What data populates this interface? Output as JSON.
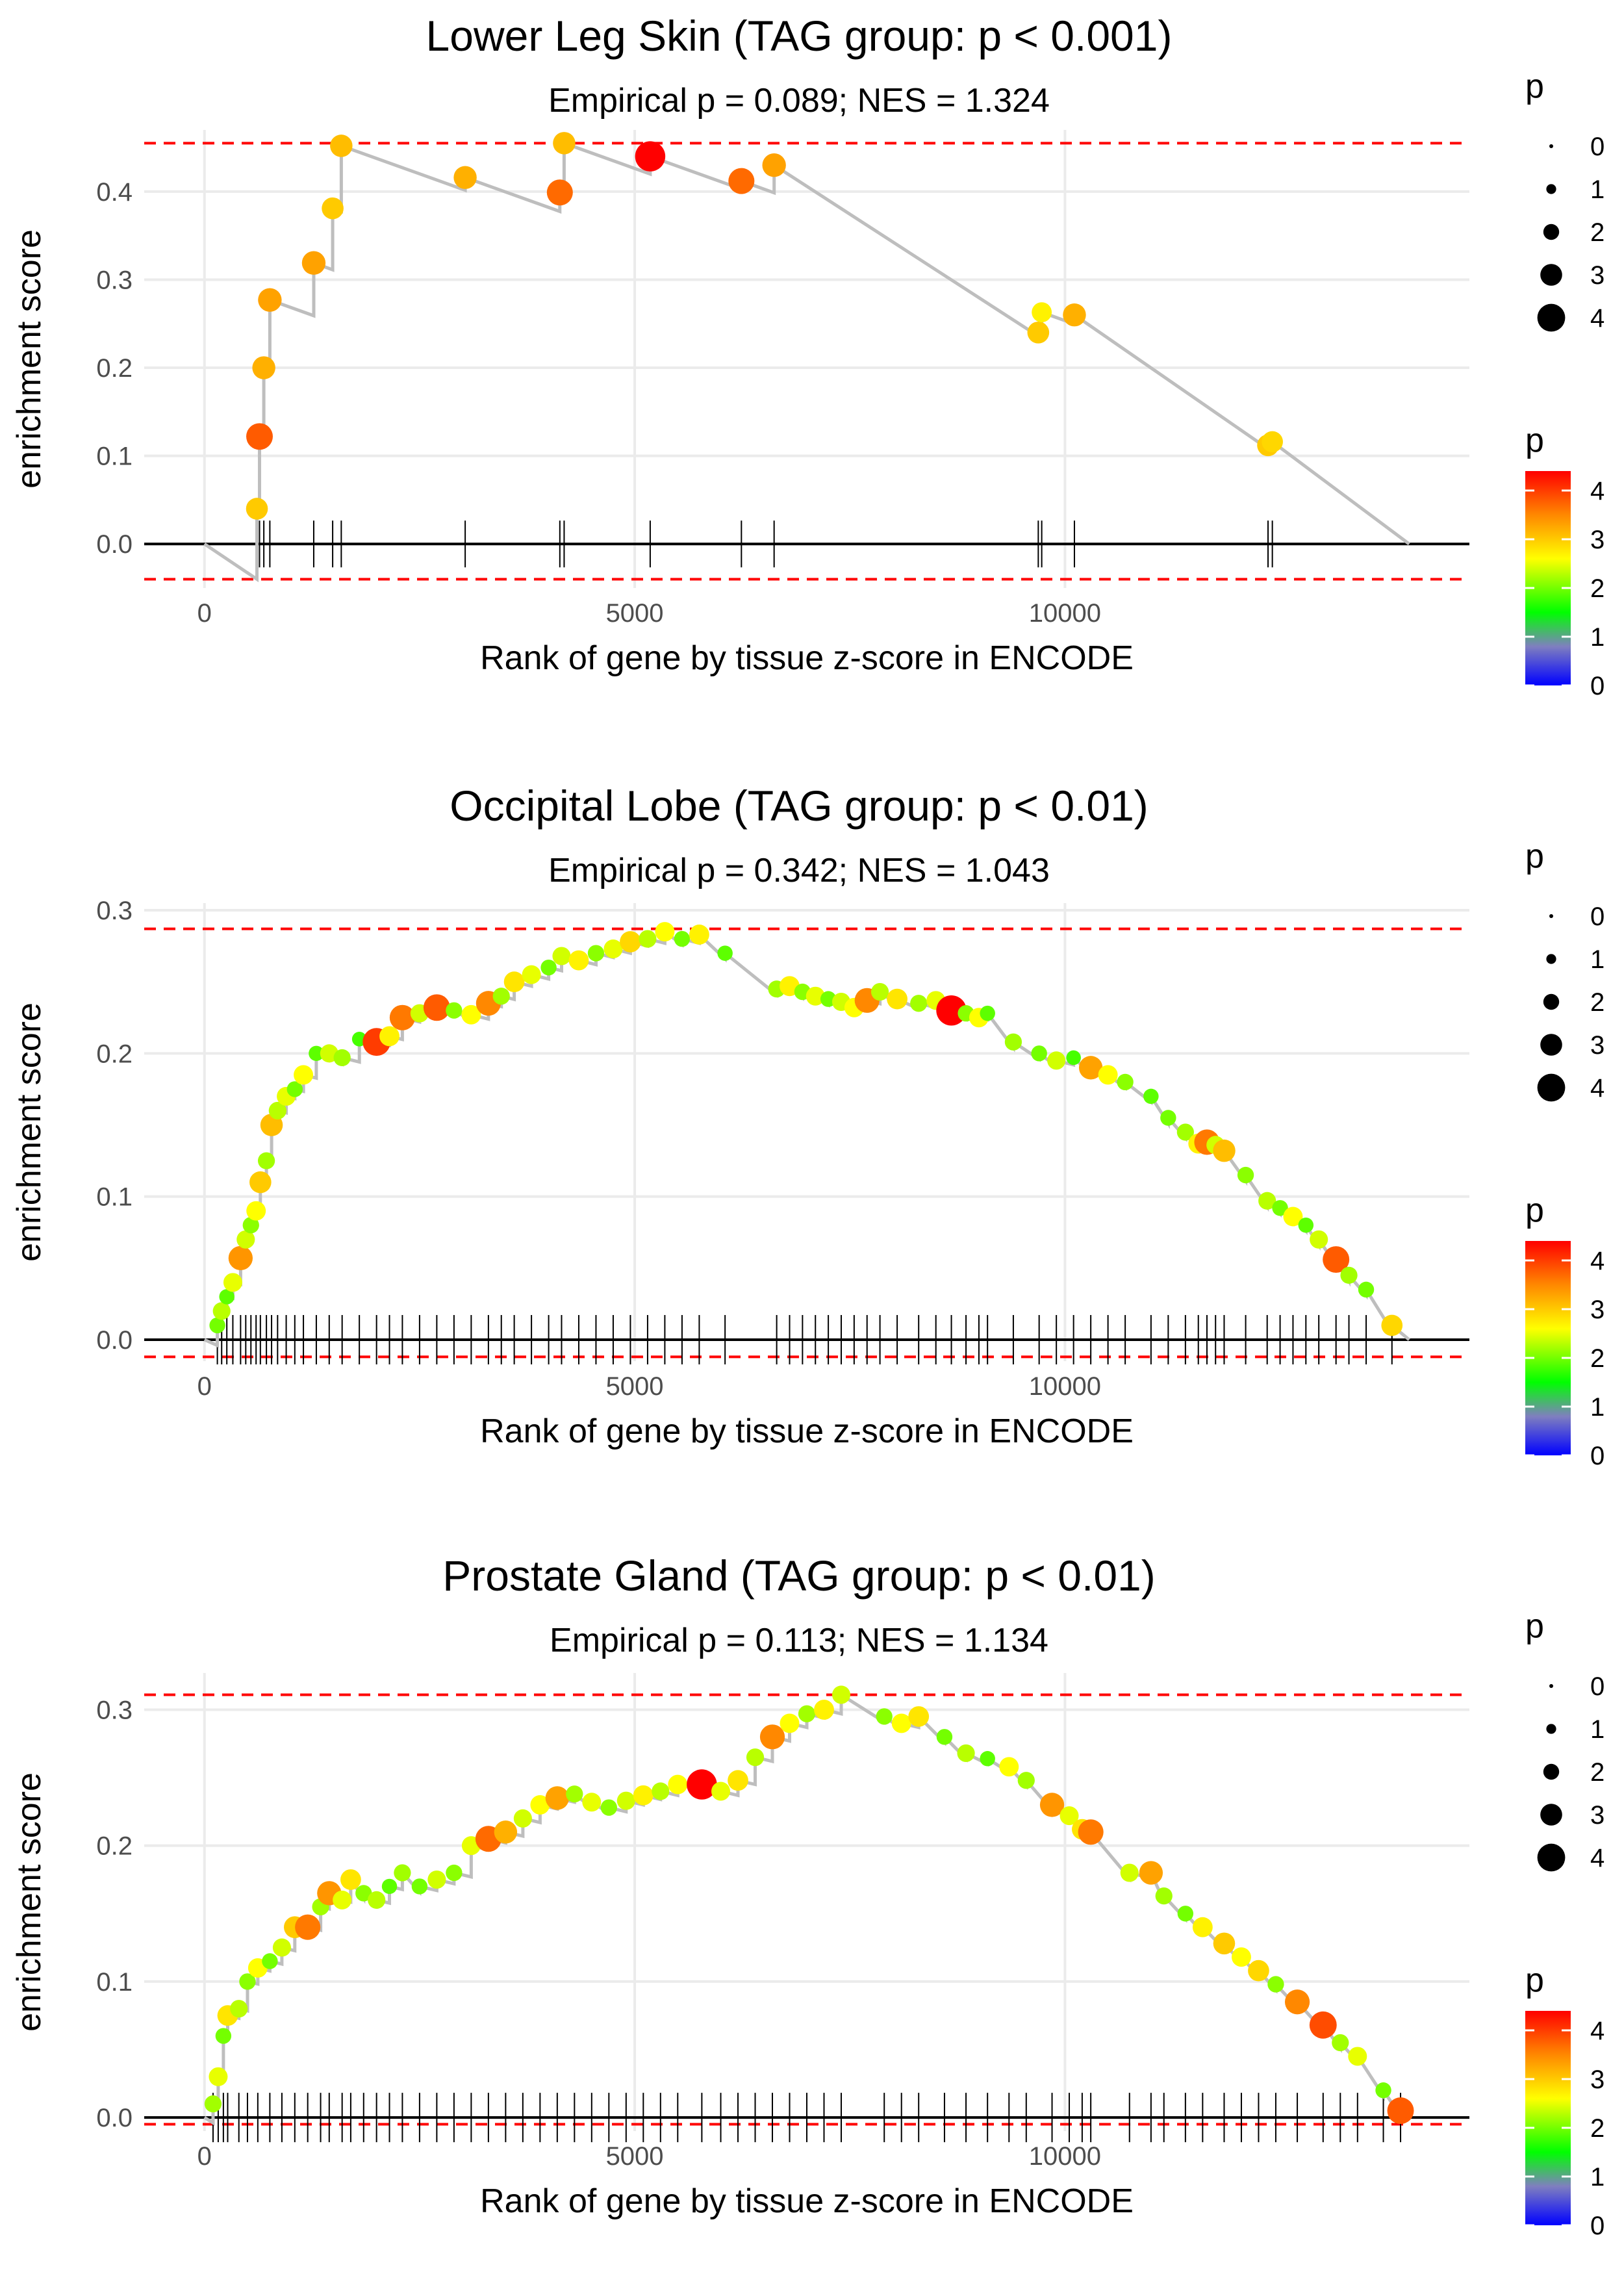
{
  "chart_data": [
    {
      "type": "line",
      "title": "Lower Leg Skin (TAG group: p < 0.001)",
      "subtitle": "Empirical p = 0.089; NES = 1.324",
      "xlabel": "Rank of gene by tissue z-score in ENCODE",
      "ylabel": "enrichment score",
      "xlim": [
        -700,
        14700
      ],
      "ylim": [
        -0.05,
        0.47
      ],
      "x_ticks": [
        0,
        5000,
        10000
      ],
      "x_tick_labels": [
        "0",
        "5000",
        "10000"
      ],
      "y_ticks": [
        0.0,
        0.1,
        0.2,
        0.3,
        0.4
      ],
      "y_tick_labels": [
        "0.0",
        "0.1",
        "0.2",
        "0.3",
        "0.4"
      ],
      "max_line": 0.455,
      "min_line": -0.04,
      "end_rank": 14000,
      "hits": [
        {
          "x": 610,
          "es": 0.04,
          "p": 3.0
        },
        {
          "x": 640,
          "es": 0.122,
          "p": 3.8
        },
        {
          "x": 690,
          "es": 0.2,
          "p": 3.2
        },
        {
          "x": 760,
          "es": 0.277,
          "p": 3.3
        },
        {
          "x": 1270,
          "es": 0.319,
          "p": 3.3
        },
        {
          "x": 1490,
          "es": 0.381,
          "p": 3.0
        },
        {
          "x": 1590,
          "es": 0.452,
          "p": 3.1
        },
        {
          "x": 3030,
          "es": 0.416,
          "p": 3.2
        },
        {
          "x": 4130,
          "es": 0.399,
          "p": 3.7
        },
        {
          "x": 4180,
          "es": 0.455,
          "p": 3.1
        },
        {
          "x": 5180,
          "es": 0.44,
          "p": 4.4
        },
        {
          "x": 6240,
          "es": 0.412,
          "p": 3.7
        },
        {
          "x": 6620,
          "es": 0.43,
          "p": 3.3
        },
        {
          "x": 9690,
          "es": 0.24,
          "p": 3.0
        },
        {
          "x": 9730,
          "es": 0.263,
          "p": 2.7
        },
        {
          "x": 10110,
          "es": 0.26,
          "p": 3.2
        },
        {
          "x": 12360,
          "es": 0.112,
          "p": 3.0
        },
        {
          "x": 12410,
          "es": 0.116,
          "p": 2.9
        }
      ]
    },
    {
      "type": "line",
      "title": "Occipital Lobe (TAG group: p < 0.01)",
      "subtitle": "Empirical p = 0.342; NES = 1.043",
      "xlabel": "Rank of gene by tissue z-score in ENCODE",
      "ylabel": "enrichment score",
      "xlim": [
        -700,
        14700
      ],
      "ylim": [
        -0.015,
        0.305
      ],
      "x_ticks": [
        0,
        5000,
        10000
      ],
      "x_tick_labels": [
        "0",
        "5000",
        "10000"
      ],
      "y_ticks": [
        0.0,
        0.1,
        0.2,
        0.3
      ],
      "y_tick_labels": [
        "0.0",
        "0.1",
        "0.2",
        "0.3"
      ],
      "max_line": 0.287,
      "min_line": -0.012,
      "end_rank": 14000,
      "hits": [
        {
          "x": 150,
          "es": 0.01,
          "p": 2.0
        },
        {
          "x": 200,
          "es": 0.02,
          "p": 2.3
        },
        {
          "x": 260,
          "es": 0.03,
          "p": 1.9
        },
        {
          "x": 330,
          "es": 0.04,
          "p": 2.5
        },
        {
          "x": 420,
          "es": 0.057,
          "p": 3.4
        },
        {
          "x": 480,
          "es": 0.07,
          "p": 2.4
        },
        {
          "x": 540,
          "es": 0.08,
          "p": 2.1
        },
        {
          "x": 600,
          "es": 0.09,
          "p": 2.6
        },
        {
          "x": 650,
          "es": 0.11,
          "p": 3.0
        },
        {
          "x": 720,
          "es": 0.125,
          "p": 2.2
        },
        {
          "x": 780,
          "es": 0.15,
          "p": 3.1
        },
        {
          "x": 850,
          "es": 0.16,
          "p": 2.3
        },
        {
          "x": 950,
          "es": 0.17,
          "p": 2.5
        },
        {
          "x": 1050,
          "es": 0.175,
          "p": 2.0
        },
        {
          "x": 1150,
          "es": 0.185,
          "p": 2.6
        },
        {
          "x": 1300,
          "es": 0.2,
          "p": 1.9
        },
        {
          "x": 1450,
          "es": 0.2,
          "p": 2.4
        },
        {
          "x": 1600,
          "es": 0.197,
          "p": 2.2
        },
        {
          "x": 1800,
          "es": 0.21,
          "p": 1.8
        },
        {
          "x": 2000,
          "es": 0.208,
          "p": 4.0
        },
        {
          "x": 2150,
          "es": 0.212,
          "p": 2.7
        },
        {
          "x": 2300,
          "es": 0.225,
          "p": 3.6
        },
        {
          "x": 2500,
          "es": 0.228,
          "p": 2.4
        },
        {
          "x": 2700,
          "es": 0.232,
          "p": 3.8
        },
        {
          "x": 2900,
          "es": 0.23,
          "p": 2.1
        },
        {
          "x": 3100,
          "es": 0.227,
          "p": 2.6
        },
        {
          "x": 3300,
          "es": 0.235,
          "p": 3.5
        },
        {
          "x": 3450,
          "es": 0.24,
          "p": 2.2
        },
        {
          "x": 3600,
          "es": 0.25,
          "p": 2.8
        },
        {
          "x": 3800,
          "es": 0.255,
          "p": 2.5
        },
        {
          "x": 4000,
          "es": 0.26,
          "p": 2.0
        },
        {
          "x": 4150,
          "es": 0.268,
          "p": 2.4
        },
        {
          "x": 4350,
          "es": 0.265,
          "p": 2.7
        },
        {
          "x": 4550,
          "es": 0.27,
          "p": 2.1
        },
        {
          "x": 4750,
          "es": 0.273,
          "p": 2.5
        },
        {
          "x": 4950,
          "es": 0.278,
          "p": 2.9
        },
        {
          "x": 5150,
          "es": 0.28,
          "p": 2.3
        },
        {
          "x": 5350,
          "es": 0.285,
          "p": 2.6
        },
        {
          "x": 5550,
          "es": 0.28,
          "p": 2.0
        },
        {
          "x": 5750,
          "es": 0.283,
          "p": 2.7
        },
        {
          "x": 6050,
          "es": 0.27,
          "p": 1.9
        },
        {
          "x": 6650,
          "es": 0.245,
          "p": 2.2
        },
        {
          "x": 6800,
          "es": 0.247,
          "p": 2.7
        },
        {
          "x": 6950,
          "es": 0.243,
          "p": 2.1
        },
        {
          "x": 7100,
          "es": 0.24,
          "p": 2.5
        },
        {
          "x": 7250,
          "es": 0.238,
          "p": 2.0
        },
        {
          "x": 7400,
          "es": 0.236,
          "p": 2.4
        },
        {
          "x": 7550,
          "es": 0.232,
          "p": 2.6
        },
        {
          "x": 7700,
          "es": 0.237,
          "p": 3.5
        },
        {
          "x": 7850,
          "es": 0.243,
          "p": 2.3
        },
        {
          "x": 8050,
          "es": 0.238,
          "p": 2.8
        },
        {
          "x": 8300,
          "es": 0.235,
          "p": 2.2
        },
        {
          "x": 8500,
          "es": 0.237,
          "p": 2.5
        },
        {
          "x": 8680,
          "es": 0.23,
          "p": 4.4
        },
        {
          "x": 8850,
          "es": 0.228,
          "p": 2.1
        },
        {
          "x": 9000,
          "es": 0.225,
          "p": 2.6
        },
        {
          "x": 9100,
          "es": 0.228,
          "p": 1.9
        },
        {
          "x": 9400,
          "es": 0.208,
          "p": 2.2
        },
        {
          "x": 9700,
          "es": 0.2,
          "p": 2.0
        },
        {
          "x": 9900,
          "es": 0.195,
          "p": 2.4
        },
        {
          "x": 10100,
          "es": 0.197,
          "p": 1.8
        },
        {
          "x": 10300,
          "es": 0.19,
          "p": 3.3
        },
        {
          "x": 10500,
          "es": 0.185,
          "p": 2.6
        },
        {
          "x": 10700,
          "es": 0.18,
          "p": 2.1
        },
        {
          "x": 11000,
          "es": 0.17,
          "p": 1.9
        },
        {
          "x": 11200,
          "es": 0.155,
          "p": 2.0
        },
        {
          "x": 11400,
          "es": 0.145,
          "p": 2.2
        },
        {
          "x": 11550,
          "es": 0.137,
          "p": 2.7
        },
        {
          "x": 11650,
          "es": 0.138,
          "p": 3.6
        },
        {
          "x": 11750,
          "es": 0.136,
          "p": 2.4
        },
        {
          "x": 11850,
          "es": 0.132,
          "p": 3.1
        },
        {
          "x": 12100,
          "es": 0.115,
          "p": 2.1
        },
        {
          "x": 12350,
          "es": 0.097,
          "p": 2.3
        },
        {
          "x": 12500,
          "es": 0.092,
          "p": 2.0
        },
        {
          "x": 12650,
          "es": 0.086,
          "p": 2.6
        },
        {
          "x": 12800,
          "es": 0.08,
          "p": 1.9
        },
        {
          "x": 12950,
          "es": 0.07,
          "p": 2.4
        },
        {
          "x": 13150,
          "es": 0.056,
          "p": 3.8
        },
        {
          "x": 13300,
          "es": 0.045,
          "p": 2.2
        },
        {
          "x": 13500,
          "es": 0.035,
          "p": 2.0
        },
        {
          "x": 13800,
          "es": 0.01,
          "p": 2.9
        }
      ]
    },
    {
      "type": "line",
      "title": "Prostate Gland (TAG group: p < 0.01)",
      "subtitle": "Empirical p = 0.113; NES = 1.134",
      "xlabel": "Rank of gene by tissue z-score in ENCODE",
      "ylabel": "enrichment score",
      "xlim": [
        -700,
        14700
      ],
      "ylim": [
        -0.01,
        0.327
      ],
      "x_ticks": [
        0,
        5000,
        10000
      ],
      "x_tick_labels": [
        "0",
        "5000",
        "10000"
      ],
      "y_ticks": [
        0.0,
        0.1,
        0.2,
        0.3
      ],
      "y_tick_labels": [
        "0.0",
        "0.1",
        "0.2",
        "0.3"
      ],
      "max_line": 0.311,
      "min_line": -0.005,
      "end_rank": 14000,
      "hits": [
        {
          "x": 100,
          "es": 0.01,
          "p": 2.2
        },
        {
          "x": 160,
          "es": 0.03,
          "p": 2.5
        },
        {
          "x": 220,
          "es": 0.06,
          "p": 2.0
        },
        {
          "x": 270,
          "es": 0.075,
          "p": 2.8
        },
        {
          "x": 400,
          "es": 0.08,
          "p": 2.3
        },
        {
          "x": 500,
          "es": 0.1,
          "p": 2.1
        },
        {
          "x": 620,
          "es": 0.11,
          "p": 2.6
        },
        {
          "x": 760,
          "es": 0.115,
          "p": 2.0
        },
        {
          "x": 900,
          "es": 0.125,
          "p": 2.4
        },
        {
          "x": 1050,
          "es": 0.14,
          "p": 3.0
        },
        {
          "x": 1200,
          "es": 0.14,
          "p": 3.6
        },
        {
          "x": 1350,
          "es": 0.155,
          "p": 2.2
        },
        {
          "x": 1450,
          "es": 0.165,
          "p": 3.4
        },
        {
          "x": 1600,
          "es": 0.16,
          "p": 2.5
        },
        {
          "x": 1700,
          "es": 0.175,
          "p": 2.8
        },
        {
          "x": 1850,
          "es": 0.165,
          "p": 2.1
        },
        {
          "x": 2000,
          "es": 0.16,
          "p": 2.3
        },
        {
          "x": 2150,
          "es": 0.17,
          "p": 1.9
        },
        {
          "x": 2300,
          "es": 0.18,
          "p": 2.2
        },
        {
          "x": 2500,
          "es": 0.17,
          "p": 2.0
        },
        {
          "x": 2700,
          "es": 0.175,
          "p": 2.4
        },
        {
          "x": 2900,
          "es": 0.18,
          "p": 2.1
        },
        {
          "x": 3100,
          "es": 0.2,
          "p": 2.5
        },
        {
          "x": 3300,
          "es": 0.205,
          "p": 3.7
        },
        {
          "x": 3500,
          "es": 0.21,
          "p": 3.2
        },
        {
          "x": 3700,
          "es": 0.22,
          "p": 2.4
        },
        {
          "x": 3900,
          "es": 0.23,
          "p": 2.6
        },
        {
          "x": 4100,
          "es": 0.235,
          "p": 3.3
        },
        {
          "x": 4300,
          "es": 0.238,
          "p": 2.2
        },
        {
          "x": 4500,
          "es": 0.232,
          "p": 2.5
        },
        {
          "x": 4700,
          "es": 0.228,
          "p": 2.1
        },
        {
          "x": 4900,
          "es": 0.233,
          "p": 2.4
        },
        {
          "x": 5100,
          "es": 0.237,
          "p": 2.7
        },
        {
          "x": 5300,
          "es": 0.24,
          "p": 2.3
        },
        {
          "x": 5500,
          "es": 0.245,
          "p": 2.6
        },
        {
          "x": 5780,
          "es": 0.245,
          "p": 4.4
        },
        {
          "x": 6000,
          "es": 0.24,
          "p": 2.5
        },
        {
          "x": 6200,
          "es": 0.248,
          "p": 2.8
        },
        {
          "x": 6400,
          "es": 0.265,
          "p": 2.3
        },
        {
          "x": 6600,
          "es": 0.28,
          "p": 3.5
        },
        {
          "x": 6800,
          "es": 0.29,
          "p": 2.6
        },
        {
          "x": 7000,
          "es": 0.297,
          "p": 2.2
        },
        {
          "x": 7200,
          "es": 0.3,
          "p": 2.7
        },
        {
          "x": 7400,
          "es": 0.311,
          "p": 2.4
        },
        {
          "x": 7900,
          "es": 0.295,
          "p": 2.1
        },
        {
          "x": 8100,
          "es": 0.29,
          "p": 2.6
        },
        {
          "x": 8300,
          "es": 0.295,
          "p": 2.8
        },
        {
          "x": 8600,
          "es": 0.28,
          "p": 2.0
        },
        {
          "x": 8850,
          "es": 0.268,
          "p": 2.3
        },
        {
          "x": 9100,
          "es": 0.264,
          "p": 1.9
        },
        {
          "x": 9350,
          "es": 0.258,
          "p": 2.6
        },
        {
          "x": 9550,
          "es": 0.248,
          "p": 2.2
        },
        {
          "x": 9850,
          "es": 0.23,
          "p": 3.4
        },
        {
          "x": 10050,
          "es": 0.222,
          "p": 2.5
        },
        {
          "x": 10200,
          "es": 0.212,
          "p": 2.8
        },
        {
          "x": 10300,
          "es": 0.21,
          "p": 3.6
        },
        {
          "x": 10750,
          "es": 0.18,
          "p": 2.4
        },
        {
          "x": 11000,
          "es": 0.18,
          "p": 3.3
        },
        {
          "x": 11150,
          "es": 0.163,
          "p": 2.2
        },
        {
          "x": 11400,
          "es": 0.15,
          "p": 2.0
        },
        {
          "x": 11600,
          "es": 0.14,
          "p": 2.7
        },
        {
          "x": 11850,
          "es": 0.128,
          "p": 3.0
        },
        {
          "x": 12050,
          "es": 0.118,
          "p": 2.6
        },
        {
          "x": 12250,
          "es": 0.108,
          "p": 2.9
        },
        {
          "x": 12450,
          "es": 0.098,
          "p": 2.1
        },
        {
          "x": 12700,
          "es": 0.085,
          "p": 3.5
        },
        {
          "x": 13000,
          "es": 0.068,
          "p": 3.9
        },
        {
          "x": 13200,
          "es": 0.055,
          "p": 2.2
        },
        {
          "x": 13400,
          "es": 0.045,
          "p": 2.5
        },
        {
          "x": 13700,
          "es": 0.02,
          "p": 2.0
        },
        {
          "x": 13900,
          "es": 0.005,
          "p": 3.8
        }
      ]
    }
  ],
  "legend": {
    "size_title": "p",
    "size_entries": [
      "0",
      "1",
      "2",
      "3",
      "4"
    ],
    "color_title": "p",
    "color_ticks": [
      "0",
      "1",
      "2",
      "3",
      "4"
    ],
    "color_max": 4.4,
    "color_stops": [
      "#0000ff",
      "#7f7fbf",
      "#00ff00",
      "#ffff00",
      "#ff8800",
      "#ff0000"
    ]
  },
  "colors": {
    "grid": "#ebebeb",
    "line": "#bebebe",
    "max_line": "#ff0000",
    "zero_line": "#000000"
  }
}
